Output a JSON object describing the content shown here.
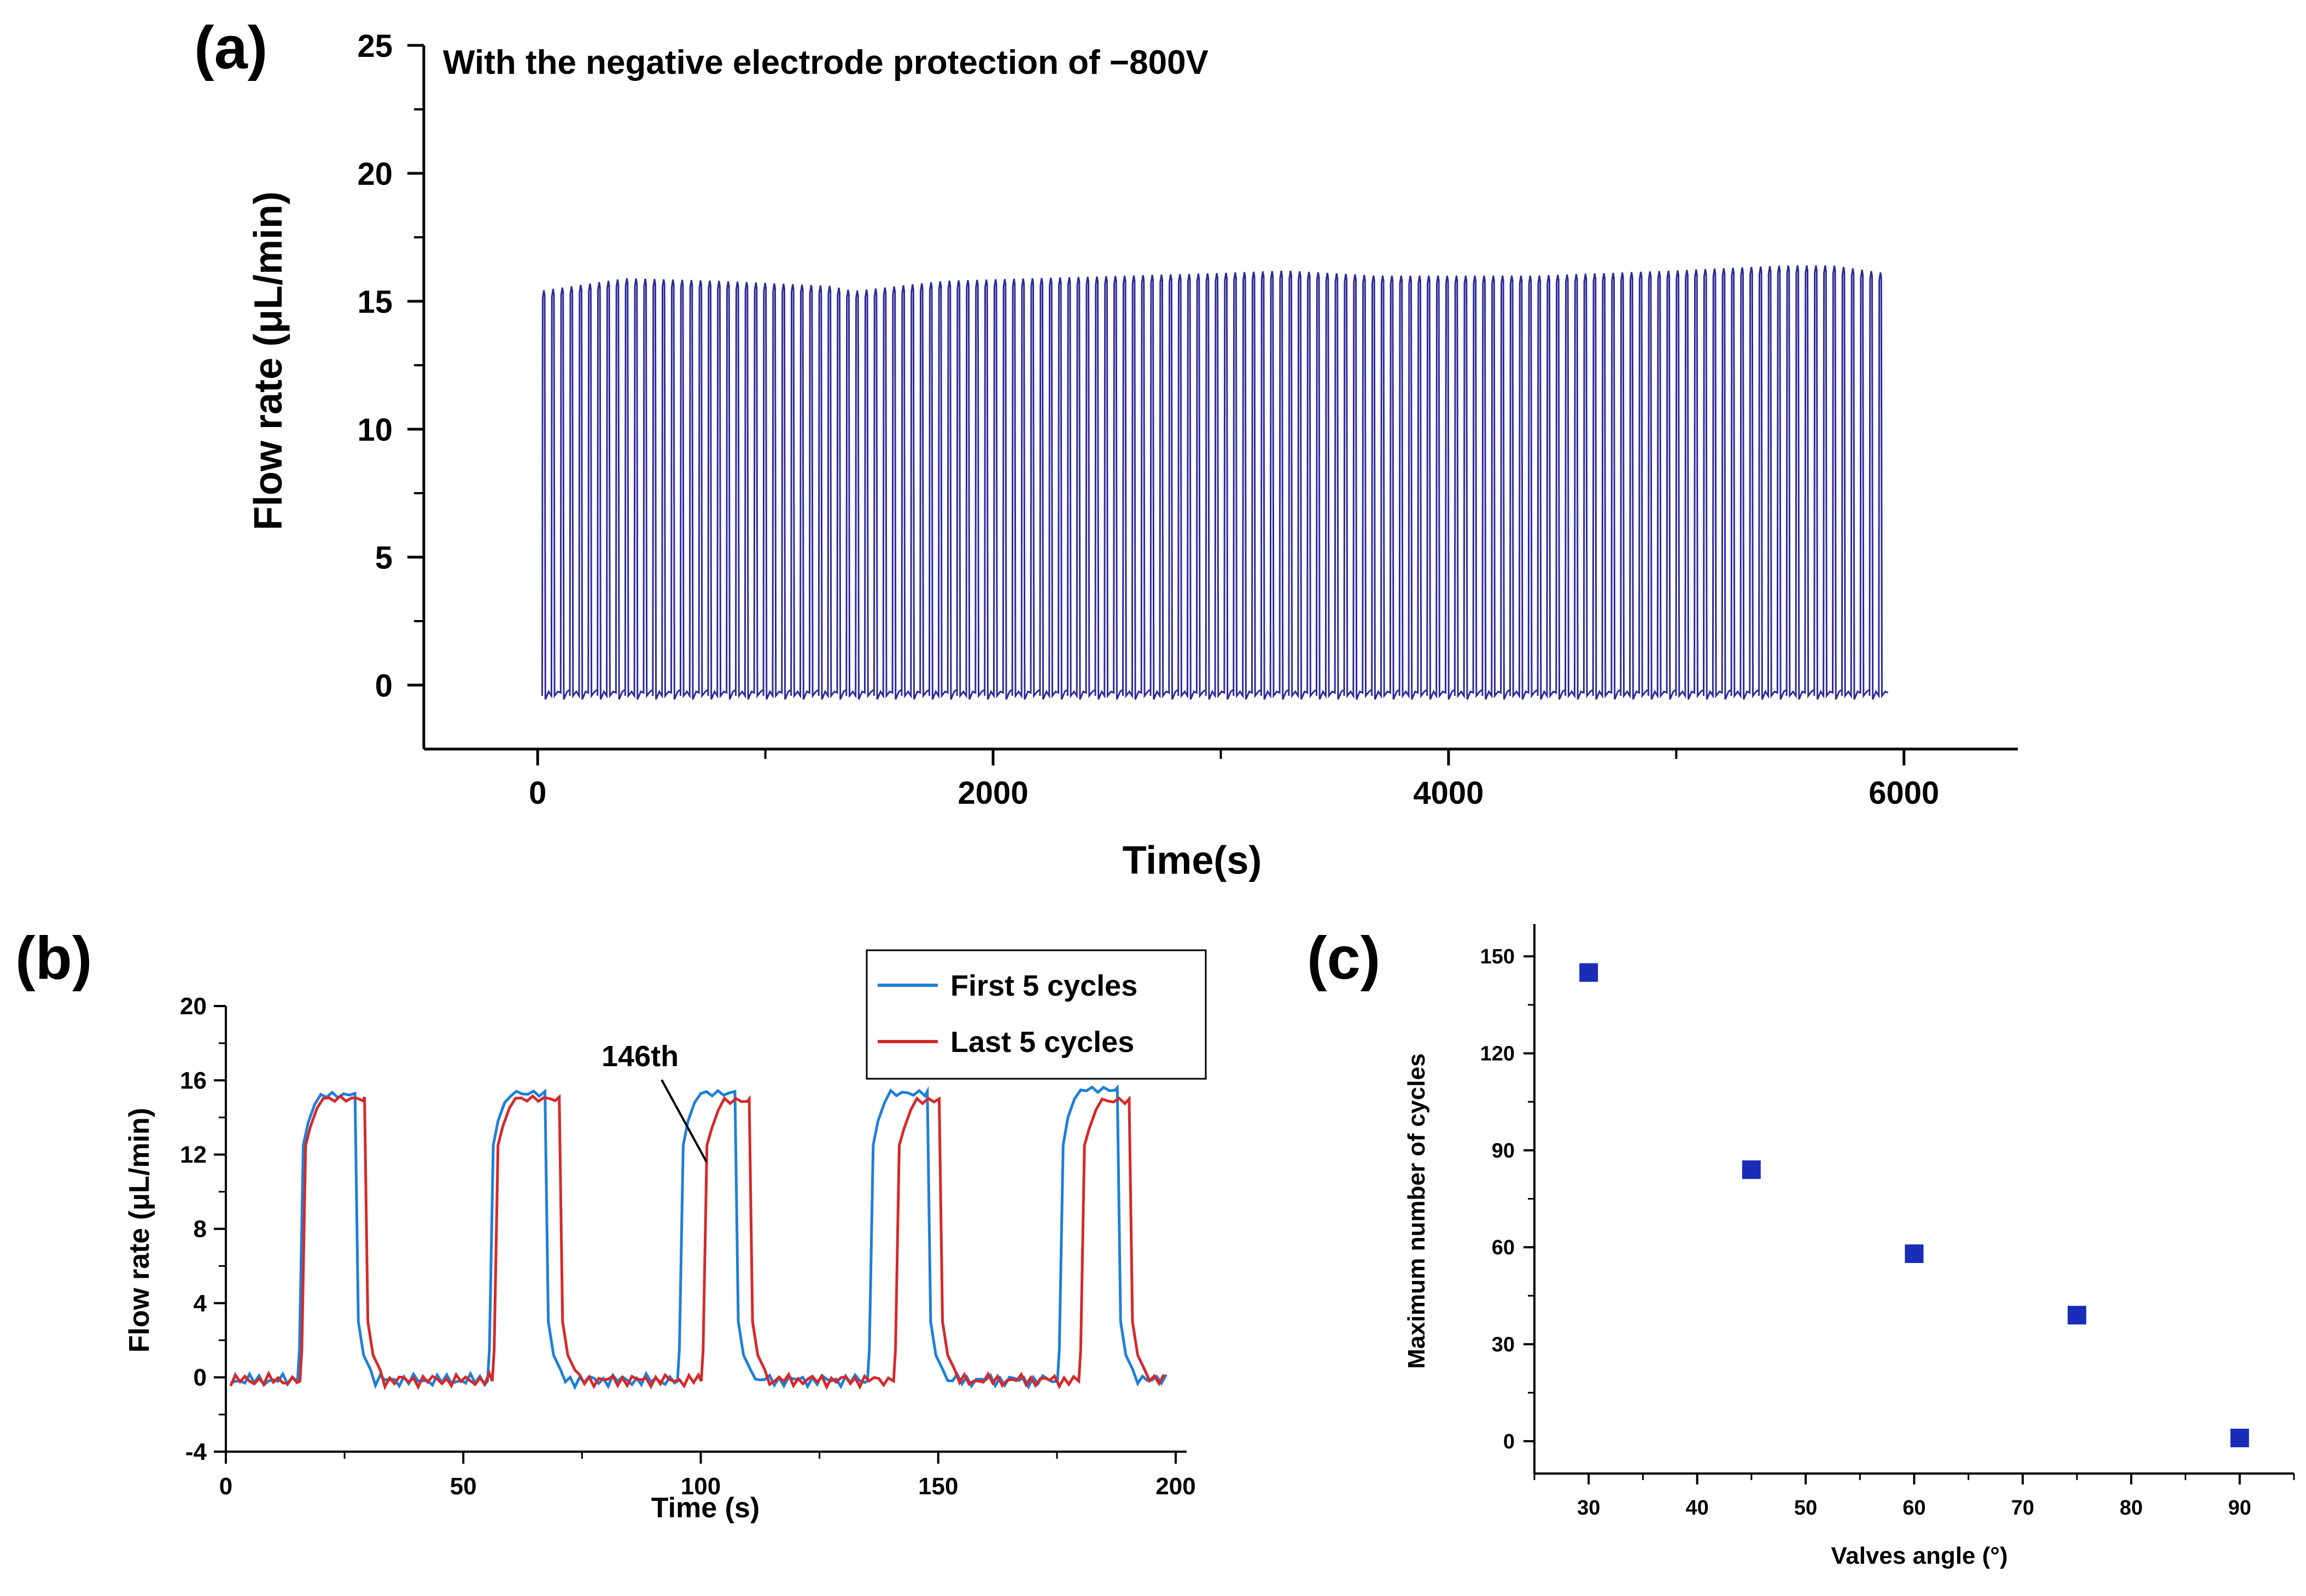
{
  "chart_data": [
    {
      "panel": "(a)",
      "type": "line",
      "title": "With the negative electrode protection of −800V",
      "xlabel": "Time(s)",
      "ylabel": "Flow rate (μL/min)",
      "xlim": [
        -500,
        6500
      ],
      "ylim": [
        -2.5,
        25
      ],
      "xticks": [
        "0",
        "2000",
        "4000",
        "6000"
      ],
      "yticks": [
        "0",
        "5",
        "10",
        "15",
        "20",
        "25"
      ],
      "grid": false,
      "legend": "none",
      "colors": {
        "series": "#2b2b9a"
      },
      "series": [
        {
          "cycles": 146,
          "t_start": 20,
          "t_end": 5930,
          "low": -0.3,
          "peak_envelope": {
            "t": [
              20,
              400,
              800,
              1300,
              1400,
              1800,
              2600,
              3000,
              3300,
              3700,
              4400,
              5000,
              5500,
              5700,
              5930
            ],
            "peak": [
              15.4,
              15.9,
              15.8,
              15.6,
              15.4,
              15.8,
              16.0,
              16.1,
              16.2,
              16.0,
              16.0,
              16.2,
              16.4,
              16.4,
              16.1
            ]
          }
        }
      ]
    },
    {
      "panel": "(b)",
      "type": "line",
      "xlabel": "Time (s)",
      "ylabel": "Flow rate (μL/min)",
      "xlim": [
        0,
        200
      ],
      "ylim": [
        -4,
        20
      ],
      "xticks": [
        "0",
        "50",
        "100",
        "150",
        "200"
      ],
      "yticks": [
        "-4",
        "0",
        "4",
        "8",
        "12",
        "16",
        "20"
      ],
      "grid": false,
      "legend": "top-right",
      "annotation": "146th",
      "series": [
        {
          "name": "First 5 cycles",
          "color": "#1f7fd8",
          "pulses": [
            [
              15.5,
              27.5,
              15.3
            ],
            [
              55.5,
              67.5,
              15.4
            ],
            [
              95.5,
              107.5,
              15.4
            ],
            [
              135.5,
              148.0,
              15.4
            ],
            [
              175.5,
              188.0,
              15.6
            ]
          ]
        },
        {
          "name": "Last 5 cycles",
          "color": "#d42a2a",
          "pulses": [
            [
              16.0,
              29.5,
              15.1
            ],
            [
              56.5,
              70.5,
              15.1
            ],
            [
              100.5,
              110.5,
              15.0
            ],
            [
              141.0,
              150.5,
              15.0
            ],
            [
              180.0,
              190.5,
              15.0
            ]
          ]
        }
      ]
    },
    {
      "panel": "(c)",
      "type": "scatter",
      "xlabel": "Valves angle (°)",
      "ylabel": "Maximum number of cycles",
      "xlim": [
        25,
        95
      ],
      "ylim": [
        -10,
        160
      ],
      "xticks": [
        "30",
        "40",
        "50",
        "60",
        "70",
        "80",
        "90"
      ],
      "yticks": [
        "0",
        "30",
        "60",
        "90",
        "120",
        "150"
      ],
      "grid": false,
      "legend": "none",
      "colors": {
        "marker": "#1a2db8"
      },
      "series": [
        {
          "x": [
            30,
            45,
            60,
            75,
            90
          ],
          "y": [
            145,
            84,
            58,
            39,
            1
          ]
        }
      ]
    }
  ]
}
